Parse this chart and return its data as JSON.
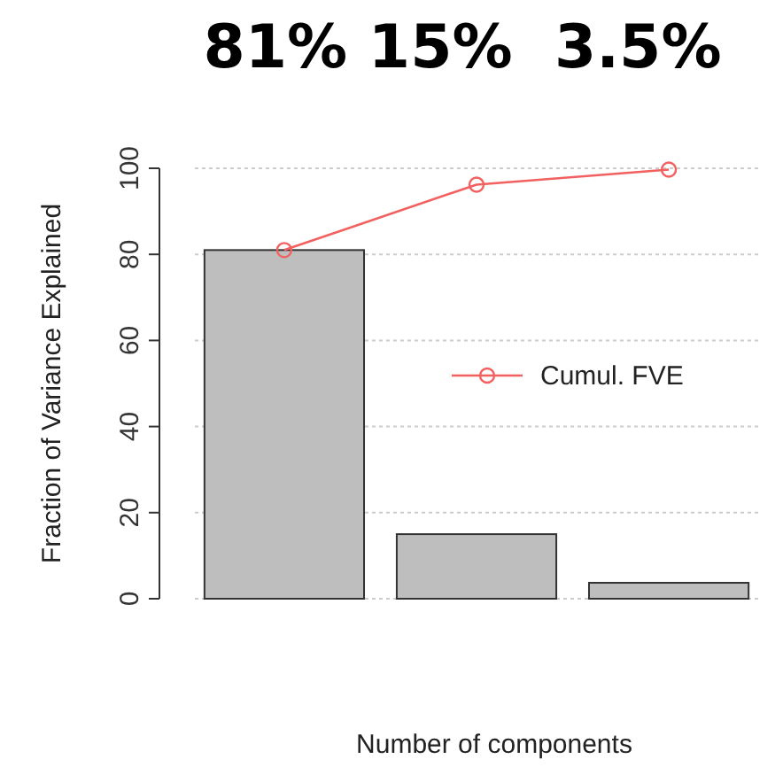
{
  "chart_data": {
    "type": "bar",
    "title": "81% 15%  3.5%",
    "xlabel": "Number of components",
    "ylabel": "Fraction of Variance Explained",
    "categories": [
      null,
      null,
      null
    ],
    "series": [
      {
        "color": "#bebebe",
        "values": [
          81,
          15,
          3.7
        ]
      },
      {
        "type": "line",
        "name": "Cumul. FVE",
        "color": "#f26060",
        "values": [
          81,
          96.2,
          99.7
        ],
        "marker": "circle"
      }
    ],
    "ylim": [
      0,
      100
    ],
    "yticks": [
      0,
      20,
      40,
      60,
      80,
      100
    ],
    "grid": "y",
    "legend": "right",
    "tick_labels": "y"
  }
}
